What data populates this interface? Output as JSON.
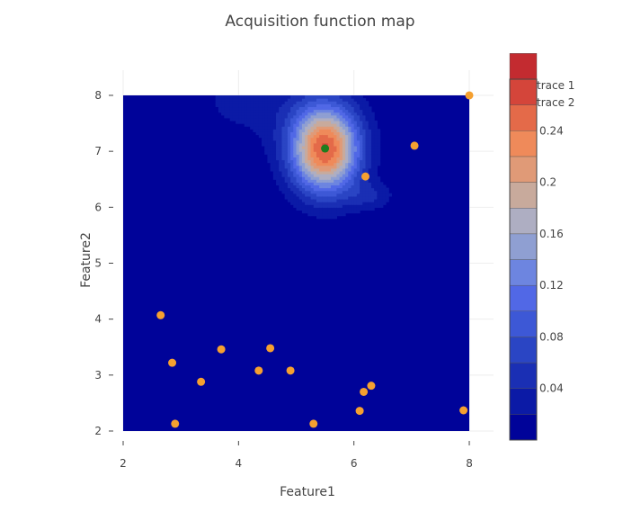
{
  "chart_data": {
    "type": "contour",
    "title": "Acquisition function map",
    "xlabel": "Feature1",
    "ylabel": "Feature2",
    "xlim": [
      2,
      8.5
    ],
    "ylim": [
      2,
      8.5
    ],
    "xticks": [
      "2",
      "4",
      "6",
      "8"
    ],
    "yticks": [
      "2",
      "3",
      "4",
      "5",
      "6",
      "7",
      "8"
    ],
    "grid": true,
    "contour": {
      "x_range": [
        2,
        8
      ],
      "y_range": [
        2,
        8
      ],
      "peak": {
        "x": 5.5,
        "y": 7.05,
        "value": 0.26
      },
      "levels_start": 0.02,
      "levels_step": 0.02,
      "colorscale": [
        "#000399",
        "#0b1aa6",
        "#1a2fb4",
        "#2a45c4",
        "#3d58d6",
        "#5168e6",
        "#6d85e0",
        "#8f9fd2",
        "#aeaec2",
        "#c8aa9c",
        "#e09a77",
        "#ef8a5a",
        "#e46a49",
        "#d4453a",
        "#c32b30",
        "#ad0b26"
      ]
    },
    "colorbar": {
      "tick_labels": [
        "0.04",
        "0.08",
        "0.12",
        "0.16",
        "0.2",
        "0.24"
      ],
      "tick_values": [
        0.04,
        0.08,
        0.12,
        0.16,
        0.2,
        0.24
      ],
      "range": [
        0.0,
        0.28
      ]
    },
    "series": [
      {
        "name": "trace 1",
        "type": "scatter",
        "color": "#f5a030",
        "points": [
          [
            2.65,
            4.07
          ],
          [
            2.85,
            3.22
          ],
          [
            2.9,
            2.13
          ],
          [
            3.35,
            2.88
          ],
          [
            3.7,
            3.46
          ],
          [
            4.35,
            3.08
          ],
          [
            4.55,
            3.48
          ],
          [
            4.9,
            3.08
          ],
          [
            5.3,
            2.13
          ],
          [
            6.1,
            2.36
          ],
          [
            6.17,
            2.7
          ],
          [
            6.3,
            2.81
          ],
          [
            6.2,
            6.55
          ],
          [
            7.05,
            7.1
          ],
          [
            7.9,
            2.37
          ],
          [
            8.0,
            8.0
          ]
        ]
      },
      {
        "name": "trace 2",
        "type": "scatter",
        "color": "#1e7d1e",
        "points": [
          [
            5.5,
            7.05
          ]
        ]
      }
    ]
  }
}
